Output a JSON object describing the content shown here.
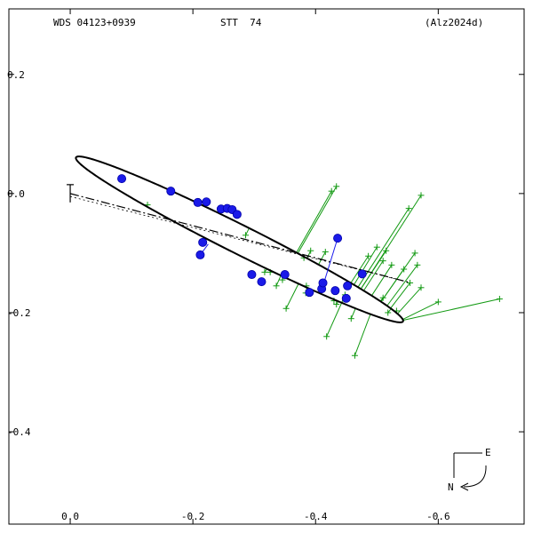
{
  "chart_data": {
    "type": "scatter",
    "header": {
      "left": "WDS 04123+0939",
      "center": "STT  74",
      "right": "(Alz2024d)"
    },
    "xlim": [
      0.1,
      -0.74
    ],
    "ylim": [
      0.31,
      -0.555
    ],
    "x_ticks": [
      {
        "value": -0.6,
        "label": "-0.6"
      },
      {
        "value": -0.4,
        "label": "-0.4"
      },
      {
        "value": -0.2,
        "label": "-0.2"
      },
      {
        "value": 0.0,
        "label": "0.0"
      }
    ],
    "y_ticks": [
      {
        "value": 0.2,
        "label": "0.2"
      },
      {
        "value": 0.0,
        "label": "0.0"
      },
      {
        "value": -0.2,
        "label": "-0.2"
      },
      {
        "value": -0.4,
        "label": "-0.4"
      }
    ],
    "orbit": {
      "a": 0.3,
      "b": 0.024,
      "center": [
        -0.276,
        -0.077
      ],
      "angle_deg": 27.3
    },
    "periastron_line": [
      [
        0.0,
        -0.005
      ],
      [
        -0.552,
        -0.149
      ]
    ],
    "node_line": [
      [
        0.0,
        0.0
      ],
      [
        -0.552,
        -0.149
      ]
    ],
    "primary_mark": {
      "x": 0.0,
      "y": 0.0
    },
    "compass": {
      "east": "E",
      "north": "N"
    },
    "precise_points": [
      [
        -0.084,
        0.025
      ],
      [
        -0.164,
        0.004
      ],
      [
        -0.208,
        -0.015
      ],
      [
        -0.222,
        -0.014
      ],
      [
        -0.246,
        -0.026
      ],
      [
        -0.256,
        -0.025
      ],
      [
        -0.264,
        -0.027
      ],
      [
        -0.272,
        -0.035
      ],
      [
        -0.212,
        -0.103
      ],
      [
        -0.216,
        -0.082
      ],
      [
        -0.296,
        -0.136
      ],
      [
        -0.312,
        -0.148
      ],
      [
        -0.35,
        -0.136
      ],
      [
        -0.39,
        -0.166
      ],
      [
        -0.41,
        -0.16
      ],
      [
        -0.412,
        -0.15
      ],
      [
        -0.432,
        -0.163
      ],
      [
        -0.452,
        -0.155
      ],
      [
        -0.476,
        -0.135
      ],
      [
        -0.45,
        -0.176
      ],
      [
        -0.436,
        -0.075
      ]
    ],
    "precise_residuals": [
      [
        [
          -0.436,
          -0.075
        ],
        [
          -0.415,
          -0.145
        ]
      ],
      [
        [
          -0.212,
          -0.103
        ],
        [
          -0.225,
          -0.085
        ]
      ]
    ],
    "micrometer_points": [
      [
        -0.572,
        -0.003
      ],
      [
        -0.552,
        -0.025
      ],
      [
        -0.562,
        -0.1
      ],
      [
        -0.566,
        -0.12
      ],
      [
        -0.544,
        -0.127
      ],
      [
        -0.572,
        -0.158
      ],
      [
        -0.5,
        -0.09
      ],
      [
        -0.515,
        -0.096
      ],
      [
        -0.486,
        -0.105
      ],
      [
        -0.51,
        -0.113
      ],
      [
        -0.524,
        -0.12
      ],
      [
        -0.554,
        -0.15
      ],
      [
        -0.7,
        -0.177
      ],
      [
        -0.6,
        -0.182
      ],
      [
        -0.532,
        -0.197
      ],
      [
        -0.518,
        -0.2
      ],
      [
        -0.448,
        -0.17
      ],
      [
        -0.41,
        -0.16
      ],
      [
        -0.385,
        -0.155
      ],
      [
        -0.346,
        -0.145
      ],
      [
        -0.326,
        -0.132
      ],
      [
        -0.336,
        -0.155
      ],
      [
        -0.317,
        -0.132
      ],
      [
        -0.352,
        -0.193
      ],
      [
        -0.392,
        -0.096
      ],
      [
        -0.416,
        -0.098
      ],
      [
        -0.381,
        -0.108
      ],
      [
        -0.384,
        -0.167
      ],
      [
        -0.434,
        0.012
      ],
      [
        -0.426,
        0.004
      ],
      [
        -0.286,
        -0.07
      ],
      [
        -0.21,
        -0.013
      ],
      [
        -0.126,
        -0.019
      ],
      [
        -0.434,
        -0.186
      ],
      [
        -0.458,
        -0.21
      ],
      [
        -0.418,
        -0.24
      ],
      [
        -0.464,
        -0.272
      ],
      [
        -0.51,
        -0.175
      ],
      [
        -0.43,
        -0.18
      ]
    ]
  }
}
